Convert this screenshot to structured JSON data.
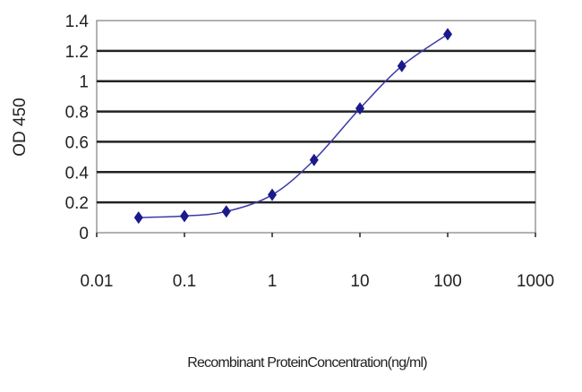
{
  "chart_data": {
    "type": "scatter",
    "title": "",
    "xlabel": "Recombinant ProteinConcentration(ng/ml)",
    "ylabel": "OD 450",
    "x_scale": "log",
    "xlim": [
      0.01,
      1000
    ],
    "ylim": [
      0,
      1.4
    ],
    "x_ticks": [
      "0.01",
      "0.1",
      "1",
      "10",
      "100",
      "1000"
    ],
    "y_ticks": [
      "0",
      "0.2",
      "0.4",
      "0.6",
      "0.8",
      "1",
      "1.2",
      "1.4"
    ],
    "grid": "horizontal",
    "series": [
      {
        "color": "#1a1a8c",
        "marker": "diamond",
        "line": "smoothed",
        "x": [
          0.03,
          0.1,
          0.3,
          1,
          3,
          10,
          30,
          100
        ],
        "y": [
          0.1,
          0.11,
          0.14,
          0.25,
          0.48,
          0.82,
          1.1,
          1.31
        ]
      }
    ]
  }
}
